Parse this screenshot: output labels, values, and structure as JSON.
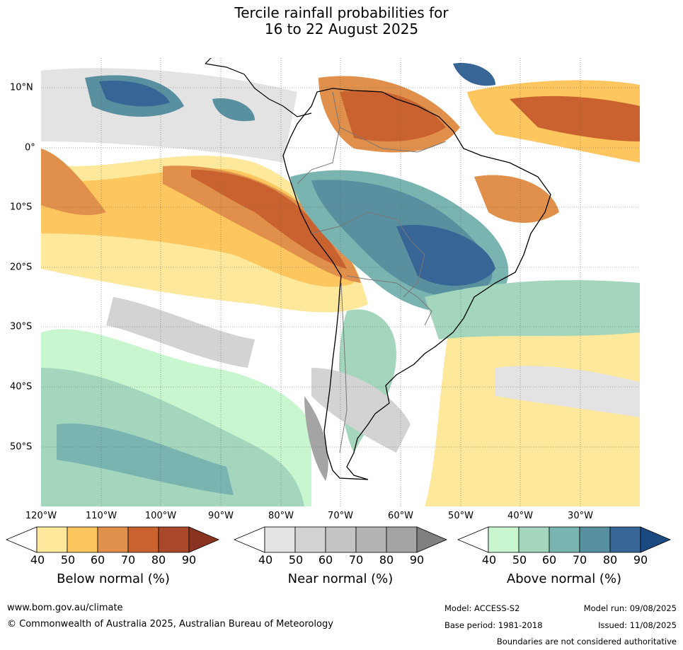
{
  "title": {
    "line1": "Tercile rainfall probabilities for",
    "line2": "16 to 22 August 2025"
  },
  "map": {
    "region": "South America and surrounding oceans",
    "projection": "plate carree",
    "lon_labels": [
      "120°W",
      "110°W",
      "100°W",
      "90°W",
      "80°W",
      "70°W",
      "60°W",
      "50°W",
      "40°W",
      "30°W"
    ],
    "lat_labels": [
      "10°N",
      "0°",
      "10°S",
      "20°S",
      "30°S",
      "40°S",
      "50°S"
    ],
    "layers": [
      "below normal probability",
      "near normal probability",
      "above normal probability",
      "coastlines",
      "country borders",
      "graticule"
    ]
  },
  "legends": [
    {
      "name": "Below normal (%)",
      "ticks": [
        "40",
        "50",
        "60",
        "70",
        "80",
        "90"
      ],
      "colors": [
        "#ffffff",
        "#fee89b",
        "#fdc65e",
        "#e0904a",
        "#c9622e",
        "#a9482a",
        "#8a3320"
      ]
    },
    {
      "name": "Near normal (%)",
      "ticks": [
        "40",
        "50",
        "60",
        "70",
        "80",
        "90"
      ],
      "colors": [
        "#ffffff",
        "#e3e3e3",
        "#d3d3d3",
        "#c4c4c4",
        "#b4b4b4",
        "#a4a4a4",
        "#808080"
      ]
    },
    {
      "name": "Above normal (%)",
      "ticks": [
        "40",
        "50",
        "60",
        "70",
        "80",
        "90"
      ],
      "colors": [
        "#ffffff",
        "#c7f6cf",
        "#a3d6bd",
        "#7ab4b0",
        "#5990a0",
        "#376696",
        "#1a4a80"
      ]
    }
  ],
  "footer": {
    "url": "www.bom.gov.au/climate",
    "copyright": "© Commonwealth of Australia 2025, Australian Bureau of Meteorology",
    "model": "Model: ACCESS-S2",
    "base_period": "Base period: 1981-2018",
    "model_run": "Model run: 09/08/2025",
    "issued": "Issued: 11/08/2025",
    "disclaimer": "Boundaries are not considered authoritative"
  }
}
